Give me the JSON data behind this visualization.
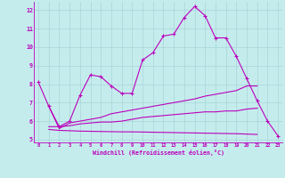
{
  "xlabel": "Windchill (Refroidissement éolien,°C)",
  "bg_color": "#c5eced",
  "grid_color": "#a8d5d8",
  "line_color": "#bb00bb",
  "x_values": [
    0,
    1,
    2,
    3,
    4,
    5,
    6,
    7,
    8,
    9,
    10,
    11,
    12,
    13,
    14,
    15,
    16,
    17,
    18,
    19,
    20,
    21,
    22,
    23
  ],
  "series1": [
    8.1,
    6.8,
    5.7,
    6.0,
    7.4,
    8.5,
    8.4,
    7.9,
    7.5,
    7.5,
    9.3,
    9.7,
    10.6,
    10.7,
    11.6,
    12.2,
    11.7,
    10.5,
    10.5,
    9.5,
    8.3,
    7.1,
    6.0,
    5.2
  ],
  "series2": [
    null,
    6.8,
    5.6,
    5.9,
    6.0,
    6.1,
    6.2,
    6.4,
    6.5,
    6.6,
    6.7,
    6.8,
    6.9,
    7.0,
    7.1,
    7.2,
    7.35,
    7.45,
    7.55,
    7.65,
    7.9,
    7.9,
    null,
    null
  ],
  "series3": [
    null,
    5.7,
    5.7,
    5.75,
    5.85,
    5.9,
    5.95,
    5.95,
    6.0,
    6.1,
    6.2,
    6.25,
    6.3,
    6.35,
    6.4,
    6.45,
    6.5,
    6.5,
    6.55,
    6.55,
    6.65,
    6.7,
    null,
    null
  ],
  "series4": [
    null,
    5.55,
    5.5,
    5.48,
    5.46,
    5.45,
    5.44,
    5.43,
    5.42,
    5.42,
    5.41,
    5.4,
    5.39,
    5.38,
    5.37,
    5.36,
    5.35,
    5.34,
    5.33,
    5.32,
    5.3,
    5.28,
    null,
    null
  ],
  "ylim_min": 4.85,
  "ylim_max": 12.45,
  "xlim_min": -0.4,
  "xlim_max": 23.4,
  "yticks": [
    5,
    6,
    7,
    8,
    9,
    10,
    11,
    12
  ],
  "xticks": [
    0,
    1,
    2,
    3,
    4,
    5,
    6,
    7,
    8,
    9,
    10,
    11,
    12,
    13,
    14,
    15,
    16,
    17,
    18,
    19,
    20,
    21,
    22,
    23
  ]
}
